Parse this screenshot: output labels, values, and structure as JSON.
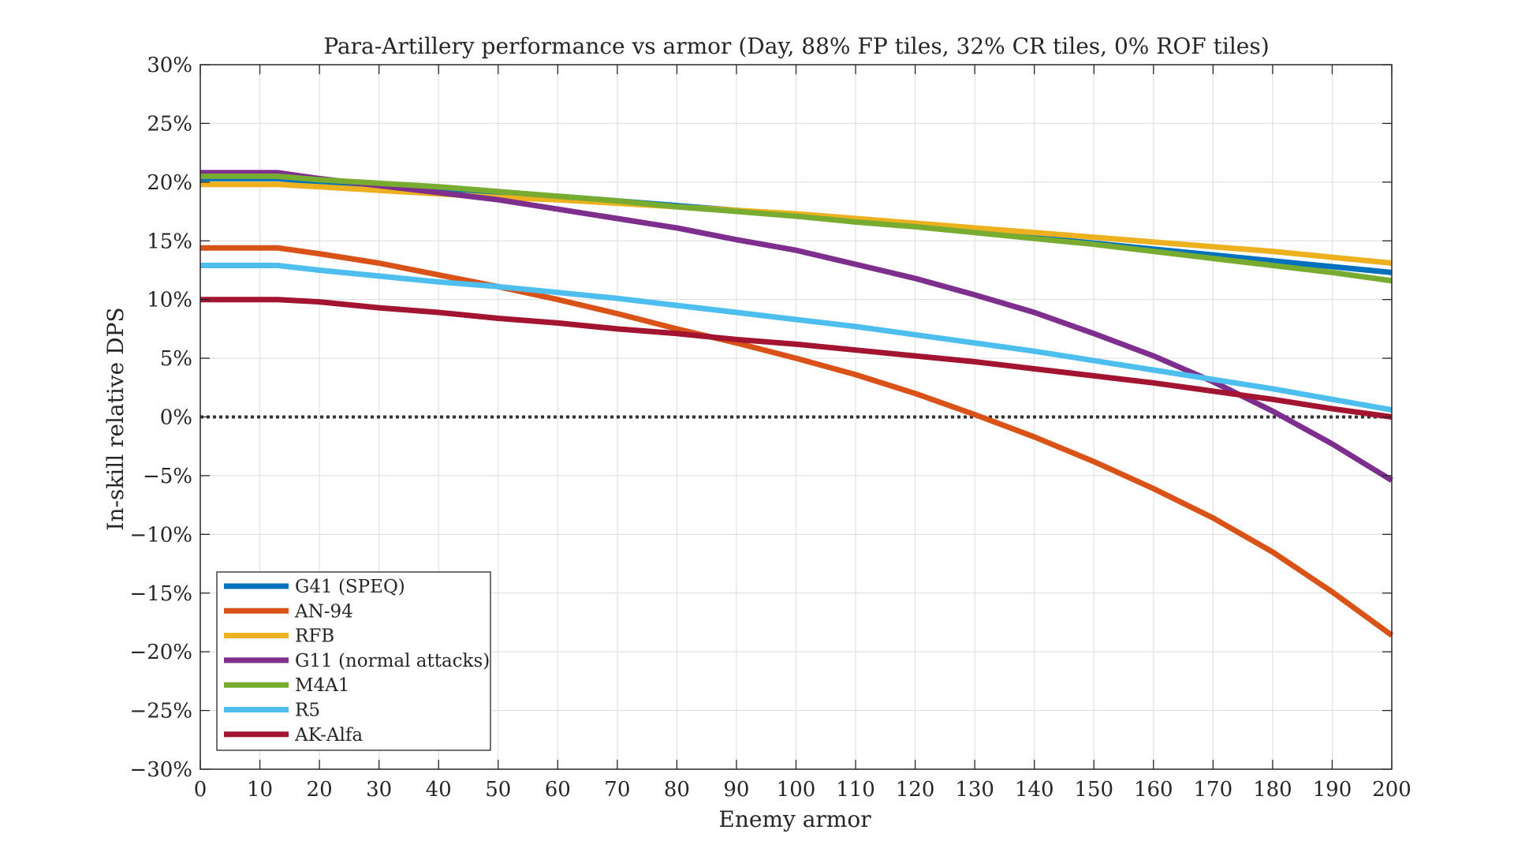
{
  "chart_data": {
    "type": "line",
    "title": "Para-Artillery performance vs armor (Day, 88% FP tiles, 32% CR tiles, 0% ROF tiles)",
    "xlabel": "Enemy armor",
    "ylabel": "In-skill relative DPS",
    "xlim": [
      0,
      200
    ],
    "ylim": [
      -30,
      30
    ],
    "x_ticks": [
      "0",
      "10",
      "20",
      "30",
      "40",
      "50",
      "60",
      "70",
      "80",
      "90",
      "100",
      "110",
      "120",
      "130",
      "140",
      "150",
      "160",
      "170",
      "180",
      "190",
      "200"
    ],
    "y_ticks": [
      "30%",
      "25%",
      "20%",
      "15%",
      "10%",
      "5%",
      "0%",
      "−5%",
      "−10%",
      "−15%",
      "−20%",
      "−25%",
      "−30%"
    ],
    "grid": true,
    "legend_position": "bottom-left",
    "reference_line": {
      "y": 0,
      "style": "dotted",
      "color": "#333333"
    },
    "x": [
      0,
      13,
      20,
      30,
      40,
      50,
      60,
      70,
      80,
      90,
      100,
      110,
      120,
      130,
      140,
      150,
      160,
      170,
      180,
      190,
      200
    ],
    "series": [
      {
        "name": "G41 (SPEQ)",
        "color": "#0072BD",
        "values": [
          20.3,
          20.3,
          20.0,
          19.7,
          19.4,
          19.1,
          18.8,
          18.4,
          18.0,
          17.6,
          17.2,
          16.8,
          16.3,
          15.8,
          15.3,
          14.8,
          14.3,
          13.8,
          13.3,
          12.8,
          12.3
        ]
      },
      {
        "name": "AN-94",
        "color": "#D95319",
        "values": [
          14.4,
          14.4,
          13.9,
          13.1,
          12.1,
          11.1,
          10.0,
          8.8,
          7.5,
          6.3,
          5.0,
          3.6,
          2.0,
          0.2,
          -1.7,
          -3.8,
          -6.1,
          -8.6,
          -11.5,
          -14.9,
          -18.6
        ]
      },
      {
        "name": "RFB",
        "color": "#EDB120",
        "values": [
          19.8,
          19.8,
          19.6,
          19.3,
          19.0,
          18.7,
          18.5,
          18.2,
          17.9,
          17.6,
          17.3,
          16.9,
          16.5,
          16.1,
          15.7,
          15.3,
          14.9,
          14.5,
          14.1,
          13.6,
          13.1
        ]
      },
      {
        "name": "G11 (normal attacks)",
        "color": "#7E2F8E",
        "values": [
          20.8,
          20.8,
          20.3,
          19.7,
          19.1,
          18.5,
          17.7,
          16.9,
          16.1,
          15.1,
          14.2,
          13.0,
          11.8,
          10.4,
          8.9,
          7.1,
          5.2,
          3.0,
          0.5,
          -2.3,
          -5.4
        ]
      },
      {
        "name": "M4A1",
        "color": "#77AC30",
        "values": [
          20.5,
          20.5,
          20.2,
          19.9,
          19.6,
          19.2,
          18.8,
          18.4,
          17.9,
          17.5,
          17.1,
          16.6,
          16.2,
          15.7,
          15.2,
          14.7,
          14.1,
          13.5,
          12.9,
          12.3,
          11.6
        ]
      },
      {
        "name": "R5",
        "color": "#4DBEEE",
        "values": [
          12.9,
          12.9,
          12.5,
          12.0,
          11.5,
          11.1,
          10.6,
          10.1,
          9.5,
          8.9,
          8.3,
          7.7,
          7.0,
          6.3,
          5.6,
          4.8,
          4.0,
          3.2,
          2.4,
          1.5,
          0.6
        ]
      },
      {
        "name": "AK-Alfa",
        "color": "#A2142F",
        "values": [
          10.0,
          10.0,
          9.8,
          9.3,
          8.9,
          8.4,
          8.0,
          7.5,
          7.1,
          6.6,
          6.2,
          5.7,
          5.2,
          4.7,
          4.1,
          3.5,
          2.9,
          2.2,
          1.5,
          0.7,
          0.0
        ]
      }
    ]
  }
}
